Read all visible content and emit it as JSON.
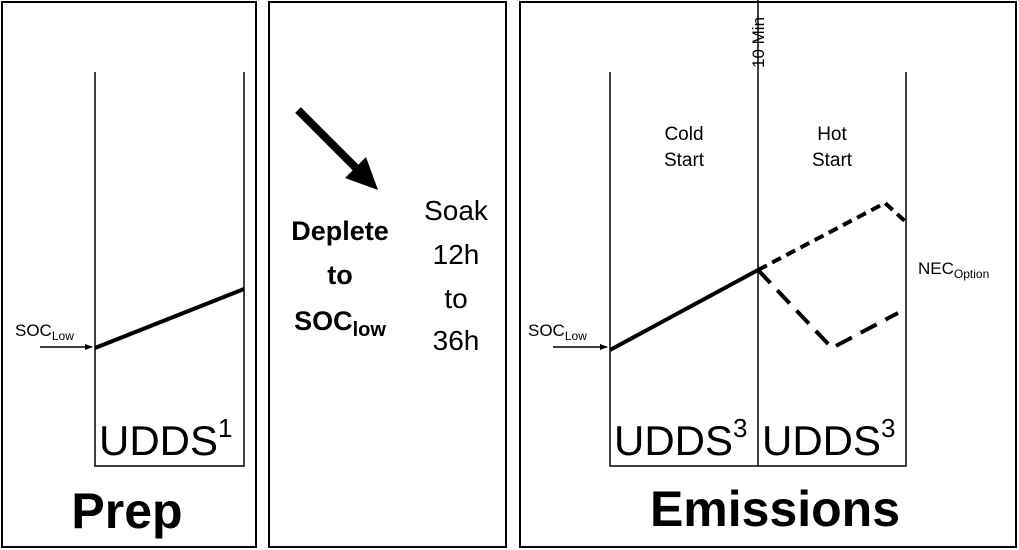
{
  "prep": {
    "title": "Prep",
    "soc": "SOC",
    "soc_sub": "Low",
    "cycle": "UDDS",
    "cycle_sup": "1"
  },
  "soak": {
    "deplete_lines": [
      "Deplete",
      "to"
    ],
    "deplete_soc": "SOC",
    "deplete_soc_sub": "low",
    "soak_lines": [
      "Soak",
      "12h",
      "to",
      "36h"
    ]
  },
  "emissions": {
    "title": "Emissions",
    "marker": "10 Min",
    "phases": [
      {
        "label_lines": [
          "Cold",
          "Start"
        ],
        "cycle": "UDDS",
        "cycle_sup": "3"
      },
      {
        "label_lines": [
          "Hot",
          "Start"
        ],
        "cycle": "UDDS",
        "cycle_sup": "3"
      }
    ],
    "soc": "SOC",
    "soc_sub": "Low",
    "nec": "NEC",
    "nec_sub": "Option"
  }
}
